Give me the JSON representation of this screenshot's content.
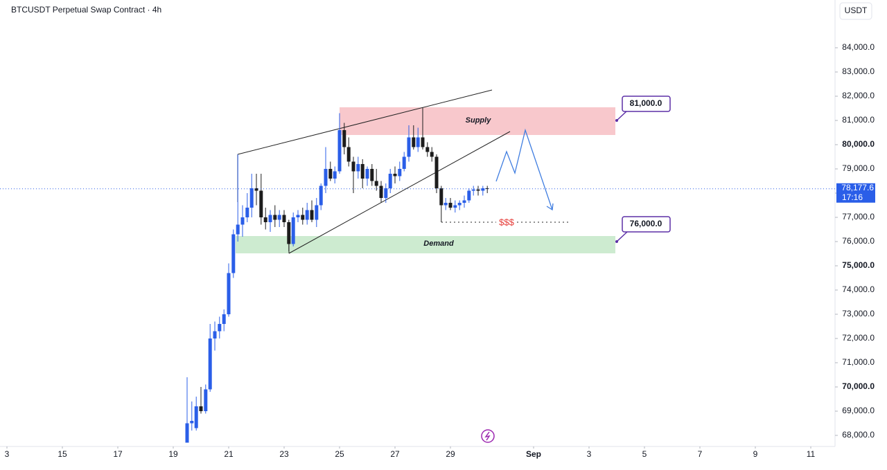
{
  "chart_data": {
    "type": "candlestick",
    "title": "BTCUSDT Perpetual Swap Contract · 4h",
    "currency_button": "USDT",
    "up_color": "#2a5ee8",
    "down_color": "#1c1c1c",
    "xlim": [
      12.75,
      42.875
    ],
    "xticks": [
      {
        "value": 13,
        "label": "3"
      },
      15,
      17,
      19,
      21,
      23,
      25,
      27,
      29,
      {
        "value": 32,
        "label": "Sep"
      },
      {
        "value": 34,
        "label": "3"
      },
      {
        "value": 36,
        "label": "5"
      },
      {
        "value": 38,
        "label": "7"
      },
      {
        "value": 40,
        "label": "9"
      },
      {
        "value": 42,
        "label": "11"
      }
    ],
    "ylim": [
      67543,
      85971
    ],
    "yticks": [
      {
        "value": 68000,
        "label": "68,000.0"
      },
      {
        "value": 69000,
        "label": "69,000.0"
      },
      {
        "value": 70000,
        "label": "70,000.0"
      },
      {
        "value": 71000,
        "label": "71,000.0"
      },
      {
        "value": 72000,
        "label": "72,000.0"
      },
      {
        "value": 73000,
        "label": "73,000.0"
      },
      {
        "value": 74000,
        "label": "74,000.0"
      },
      {
        "value": 75000,
        "label": "75,000.0"
      },
      {
        "value": 76000,
        "label": "76,000.0"
      },
      {
        "value": 77000,
        "label": "77,000.0"
      },
      {
        "value": 78000,
        "label": "78,000.0"
      },
      {
        "value": 79000,
        "label": "79,000.0"
      },
      {
        "value": 80000,
        "label": "80,000.0"
      },
      {
        "value": 81000,
        "label": "81,000.0"
      },
      {
        "value": 82000,
        "label": "82,000.0"
      },
      {
        "value": 83000,
        "label": "83,000.0"
      },
      {
        "value": 84000,
        "label": "84,000.0"
      }
    ],
    "last_price": {
      "value": 78177.6,
      "label": "78,177.6"
    },
    "countdown": "17:16",
    "annotations": {
      "supply": "Supply",
      "demand": "Demand",
      "liquidity": "$$$",
      "target_high": "81,000.0",
      "target_low": "76,000.0"
    },
    "x": [
      19.5,
      19.67,
      19.83,
      20,
      20.17,
      20.33,
      20.5,
      20.67,
      20.83,
      21,
      21.17,
      21.33,
      21.5,
      21.67,
      21.83,
      22,
      22.17,
      22.33,
      22.5,
      22.67,
      22.83,
      23,
      23.17,
      23.33,
      23.5,
      23.67,
      23.83,
      24,
      24.17,
      24.33,
      24.5,
      24.67,
      24.83,
      25,
      25.17,
      25.33,
      25.5,
      25.67,
      25.83,
      26,
      26.17,
      26.33,
      26.5,
      26.67,
      26.83,
      27,
      27.17,
      27.33,
      27.5,
      27.67,
      27.83,
      28,
      28.17,
      28.33,
      28.5,
      28.67,
      28.83,
      29,
      29.17,
      29.33,
      29.5,
      29.67,
      29.83,
      30,
      30.17,
      30.33
    ],
    "open": [
      67700,
      68500,
      68300,
      69200,
      69000,
      69900,
      72000,
      72300,
      72600,
      73000,
      74700,
      76300,
      76700,
      77000,
      77400,
      78200,
      78100,
      77000,
      76800,
      77100,
      76900,
      77100,
      76800,
      75900,
      77000,
      77100,
      76900,
      77300,
      76900,
      77500,
      78300,
      79000,
      78600,
      78900,
      80600,
      79900,
      79300,
      78900,
      79200,
      78600,
      79000,
      78500,
      78300,
      77800,
      78200,
      78800,
      78700,
      79000,
      79500,
      80300,
      79900,
      80300,
      79900,
      79700,
      79500,
      78200,
      77500,
      77600,
      77400,
      77500,
      77600,
      77700,
      78100,
      78150,
      78100,
      78200
    ],
    "high": [
      70400,
      69400,
      69600,
      70000,
      70100,
      72600,
      72700,
      72900,
      73200,
      75100,
      76500,
      79600,
      77500,
      78000,
      78800,
      78800,
      78800,
      77400,
      77300,
      77500,
      77300,
      77300,
      76900,
      77200,
      77300,
      77400,
      77600,
      77700,
      77800,
      78400,
      79900,
      79300,
      79100,
      81300,
      80900,
      80300,
      79500,
      79500,
      79400,
      79100,
      79200,
      79000,
      78500,
      78400,
      79000,
      79100,
      79300,
      79700,
      80800,
      80800,
      80700,
      81500,
      80100,
      79900,
      79600,
      78300,
      77800,
      77800,
      77700,
      77700,
      77900,
      78200,
      78300,
      78300,
      78300,
      78300
    ],
    "low": [
      67700,
      68200,
      68200,
      68900,
      68900,
      69800,
      71500,
      72000,
      72300,
      72900,
      74500,
      76000,
      76200,
      76800,
      77000,
      77500,
      76700,
      76500,
      76400,
      76600,
      76600,
      76600,
      75600,
      75800,
      76800,
      76700,
      76700,
      76800,
      76600,
      77300,
      78000,
      78500,
      78400,
      78800,
      79600,
      79100,
      78000,
      78600,
      78200,
      78300,
      78300,
      78100,
      77600,
      77600,
      78000,
      78400,
      78500,
      78900,
      79300,
      79800,
      79700,
      79800,
      79500,
      79300,
      78000,
      76800,
      77300,
      77300,
      77200,
      77300,
      77400,
      77600,
      77900,
      77900,
      77900,
      78000
    ],
    "close": [
      68500,
      68600,
      69200,
      69000,
      69900,
      72000,
      72300,
      72600,
      73000,
      74700,
      76300,
      76700,
      77000,
      77400,
      78200,
      78100,
      77000,
      76800,
      77100,
      76900,
      77100,
      76800,
      75900,
      77000,
      77100,
      76900,
      77300,
      76900,
      77500,
      78300,
      79000,
      78600,
      78900,
      80600,
      79900,
      79300,
      78900,
      79200,
      78600,
      79000,
      78500,
      78300,
      77800,
      78200,
      78800,
      78700,
      79000,
      79500,
      80300,
      79900,
      80300,
      79900,
      79700,
      79500,
      78200,
      77500,
      77600,
      77400,
      77500,
      77600,
      77700,
      78100,
      78150,
      78100,
      78200,
      78177.6
    ]
  }
}
